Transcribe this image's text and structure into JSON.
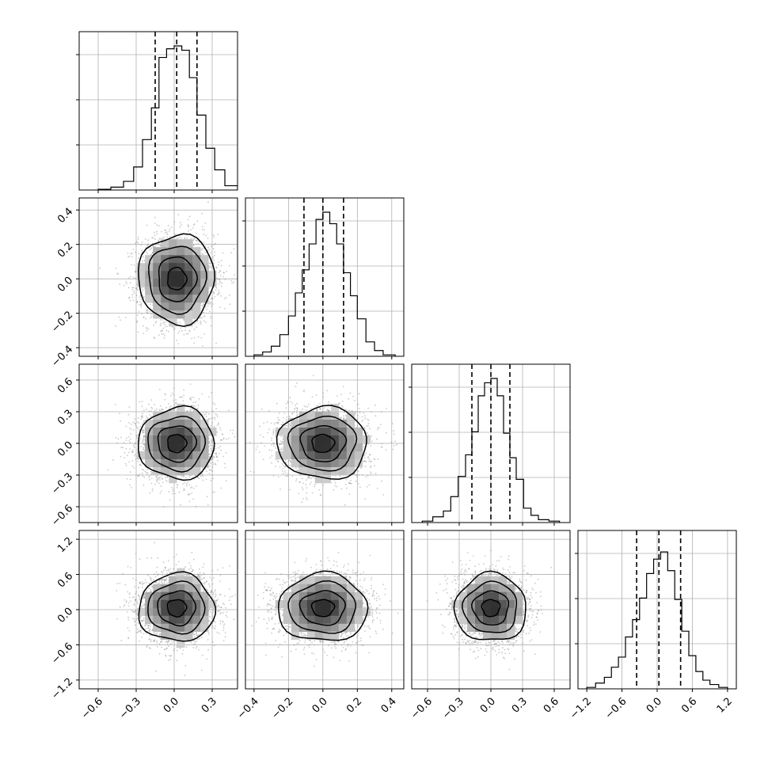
{
  "chart_data": {
    "type": "corner",
    "parameters": [
      {
        "index": 0,
        "range": [
          -0.75,
          0.5
        ],
        "ticks": [
          -0.6,
          -0.3,
          0.0,
          0.3
        ],
        "tick_labels": [
          "−0.6",
          "−0.3",
          "0.0",
          "0.3"
        ],
        "quantiles": [
          -0.15,
          0.02,
          0.18
        ],
        "hist_bins": [
          -0.6,
          -0.5,
          -0.4,
          -0.32,
          -0.25,
          -0.18,
          -0.12,
          -0.06,
          0.0,
          0.06,
          0.12,
          0.18,
          0.25,
          0.32,
          0.4,
          0.5
        ],
        "hist_counts": [
          0.005,
          0.02,
          0.06,
          0.16,
          0.35,
          0.57,
          0.92,
          0.98,
          1.0,
          0.97,
          0.78,
          0.52,
          0.29,
          0.14,
          0.03
        ]
      },
      {
        "index": 1,
        "range": [
          -0.45,
          0.47
        ],
        "ticks": [
          -0.4,
          -0.2,
          0.0,
          0.2,
          0.4
        ],
        "tick_labels": [
          "−0.4",
          "−0.2",
          "0.0",
          "0.2",
          "0.4"
        ],
        "quantiles": [
          -0.11,
          0.0,
          0.12
        ],
        "hist_bins": [
          -0.4,
          -0.35,
          -0.3,
          -0.25,
          -0.2,
          -0.16,
          -0.12,
          -0.08,
          -0.04,
          0.0,
          0.04,
          0.08,
          0.12,
          0.16,
          0.2,
          0.25,
          0.3,
          0.35,
          0.42
        ],
        "hist_counts": [
          0.01,
          0.03,
          0.07,
          0.15,
          0.28,
          0.44,
          0.6,
          0.78,
          0.95,
          1.0,
          0.92,
          0.78,
          0.58,
          0.42,
          0.26,
          0.1,
          0.04,
          0.01
        ]
      },
      {
        "index": 2,
        "range": [
          -0.75,
          0.75
        ],
        "ticks": [
          -0.6,
          -0.3,
          0.0,
          0.3,
          0.6
        ],
        "tick_labels": [
          "−0.6",
          "−0.3",
          "0.0",
          "0.3",
          "0.6"
        ],
        "quantiles": [
          -0.18,
          0.0,
          0.18
        ],
        "hist_bins": [
          -0.65,
          -0.55,
          -0.45,
          -0.38,
          -0.31,
          -0.24,
          -0.18,
          -0.12,
          -0.06,
          0.0,
          0.06,
          0.12,
          0.18,
          0.24,
          0.31,
          0.38,
          0.45,
          0.55,
          0.65
        ],
        "hist_counts": [
          0.01,
          0.04,
          0.08,
          0.18,
          0.32,
          0.47,
          0.63,
          0.88,
          0.97,
          1.0,
          0.88,
          0.62,
          0.45,
          0.3,
          0.1,
          0.05,
          0.02,
          0.01
        ]
      },
      {
        "index": 3,
        "range": [
          -1.35,
          1.35
        ],
        "ticks": [
          -1.2,
          -0.6,
          0.0,
          0.6,
          1.2
        ],
        "tick_labels": [
          "−1.2",
          "−0.6",
          "0.0",
          "0.6",
          "1.2"
        ],
        "quantiles": [
          -0.35,
          0.03,
          0.4
        ],
        "hist_bins": [
          -1.2,
          -1.05,
          -0.9,
          -0.78,
          -0.66,
          -0.54,
          -0.42,
          -0.3,
          -0.18,
          -0.06,
          0.06,
          0.18,
          0.3,
          0.42,
          0.54,
          0.66,
          0.78,
          0.9,
          1.05,
          1.2
        ],
        "hist_counts": [
          0.01,
          0.04,
          0.08,
          0.15,
          0.22,
          0.36,
          0.48,
          0.63,
          0.8,
          0.9,
          0.95,
          0.82,
          0.62,
          0.4,
          0.23,
          0.12,
          0.06,
          0.03,
          0.01
        ]
      }
    ],
    "sample_spread": [
      0.15,
      0.13,
      0.17,
      0.29
    ],
    "contour_levels": [
      0.5,
      1.0,
      1.5,
      2.0
    ],
    "grid": true,
    "title": "",
    "xlabel": "",
    "ylabel": ""
  }
}
